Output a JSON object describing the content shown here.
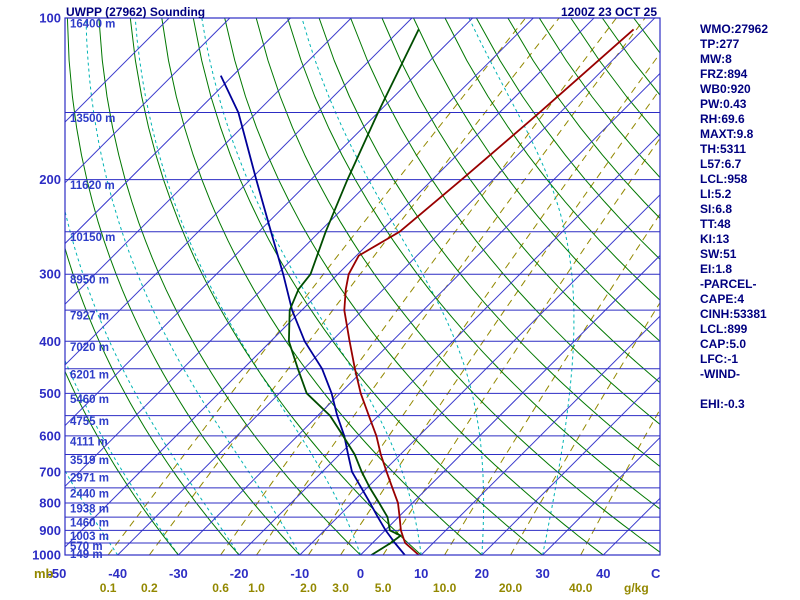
{
  "header": {
    "title": "UWPP (27962) Sounding",
    "datetime": "1200Z 23 OCT 25"
  },
  "panel": {
    "items": [
      "WMO:27962",
      "TP:277",
      "MW:8",
      "FRZ:894",
      "WB0:920",
      "PW:0.43",
      "RH:69.6",
      "MAXT:9.8",
      "TH:5311",
      "L57:6.7",
      "LCL:958",
      "LI:5.2",
      "SI:6.8",
      "TT:48",
      "KI:13",
      "SW:51",
      "EI:1.8",
      "-PARCEL-",
      "CAPE:4",
      "CINH:53381",
      "LCL:899",
      "CAP:5.0",
      "LFC:-1",
      "-WIND-",
      "",
      "EHI:-0.3"
    ]
  },
  "chart_data": {
    "type": "skewt_log_p",
    "title": "UWPP (27962) Sounding",
    "units": {
      "pressure": "mb",
      "temp": "C",
      "mixing": "g/kg"
    },
    "pressure_axis_mb": [
      100,
      200,
      300,
      400,
      500,
      600,
      700,
      800,
      900,
      1000
    ],
    "pressure_lines_mb": [
      100,
      150,
      200,
      250,
      300,
      350,
      400,
      450,
      500,
      550,
      600,
      650,
      700,
      750,
      800,
      850,
      900,
      950,
      1000
    ],
    "temp_axis_C": [
      -50,
      -40,
      -30,
      -20,
      -10,
      0,
      10,
      20,
      30,
      40
    ],
    "height_labels": [
      {
        "p": 100,
        "label": "16400 m"
      },
      {
        "p": 150,
        "label": "13500 m"
      },
      {
        "p": 200,
        "label": "11620 m"
      },
      {
        "p": 250,
        "label": "10150 m"
      },
      {
        "p": 300,
        "label": "8950 m"
      },
      {
        "p": 350,
        "label": "7927 m"
      },
      {
        "p": 400,
        "label": "7020 m"
      },
      {
        "p": 450,
        "label": "6201 m"
      },
      {
        "p": 500,
        "label": "5460 m"
      },
      {
        "p": 550,
        "label": "4755 m"
      },
      {
        "p": 600,
        "label": "4111 m"
      },
      {
        "p": 650,
        "label": "3519 m"
      },
      {
        "p": 700,
        "label": "2971 m"
      },
      {
        "p": 750,
        "label": "2440 m"
      },
      {
        "p": 800,
        "label": "1938 m"
      },
      {
        "p": 850,
        "label": "1460 m"
      },
      {
        "p": 900,
        "label": "1003 m"
      },
      {
        "p": 950,
        "label": "570 m"
      },
      {
        "p": 1000,
        "label": "149 m"
      }
    ],
    "grid": {
      "isotherms_C": {
        "min": -120,
        "max": 40,
        "step": 10
      },
      "dry_adiabats_thetaC": {
        "min": -30,
        "max": 170,
        "step": 10
      },
      "moist_adiabats_startC": {
        "min": -60,
        "max": 30,
        "step": 10
      },
      "mixing_ratio_gkg": [
        0.1,
        0.2,
        0.6,
        1.0,
        2.0,
        3.0,
        5.0,
        10.0,
        20.0,
        40.0
      ]
    },
    "colors": {
      "frame": "#2d2dc4",
      "isotherm": "#3a3acc",
      "pressure_line": "#2d2dc4",
      "dry_adiabat": "#007700",
      "moist_adiabat": "#00b4b4",
      "mixing_ratio": "#938800",
      "temperature": "#990000",
      "dewpoint": "#004d00",
      "parcel": "#000099",
      "axis_text": "#2d2dc4",
      "height_text": "#2d3cc8",
      "title_text": "#000080"
    },
    "series": {
      "temperature": {
        "name": "temperature",
        "color": "#990000",
        "points": [
          [
            1000,
            9.6
          ],
          [
            950,
            5.4
          ],
          [
            925,
            4.0
          ],
          [
            900,
            2.6
          ],
          [
            850,
            0.2
          ],
          [
            800,
            -2.4
          ],
          [
            750,
            -5.8
          ],
          [
            700,
            -9.4
          ],
          [
            650,
            -13.2
          ],
          [
            600,
            -17.0
          ],
          [
            550,
            -21.6
          ],
          [
            500,
            -26.6
          ],
          [
            450,
            -31.6
          ],
          [
            400,
            -37.0
          ],
          [
            350,
            -43.0
          ],
          [
            320,
            -46.2
          ],
          [
            300,
            -48.2
          ],
          [
            277,
            -49.6
          ],
          [
            250,
            -46.8
          ],
          [
            200,
            -45.2
          ],
          [
            150,
            -43.4
          ],
          [
            105,
            -41.6
          ]
        ]
      },
      "dewpoint": {
        "name": "dewpoint",
        "color": "#004d00",
        "points": [
          [
            1000,
            1.8
          ],
          [
            950,
            3.0
          ],
          [
            920,
            3.4
          ],
          [
            900,
            0.8
          ],
          [
            850,
            -1.8
          ],
          [
            800,
            -5.5
          ],
          [
            750,
            -9.5
          ],
          [
            700,
            -13.5
          ],
          [
            650,
            -17.5
          ],
          [
            600,
            -22.5
          ],
          [
            550,
            -28.0
          ],
          [
            500,
            -35.5
          ],
          [
            450,
            -41.0
          ],
          [
            400,
            -47.0
          ],
          [
            350,
            -52.0
          ],
          [
            320,
            -54.0
          ],
          [
            300,
            -54.5
          ],
          [
            250,
            -59.0
          ],
          [
            200,
            -64.0
          ],
          [
            150,
            -70.0
          ],
          [
            105,
            -77.0
          ]
        ]
      },
      "parcel": {
        "name": "parcel",
        "color": "#000099",
        "points": [
          [
            1000,
            7.3
          ],
          [
            950,
            3.7
          ],
          [
            900,
            0.1
          ],
          [
            850,
            -3.4
          ],
          [
            800,
            -7.0
          ],
          [
            750,
            -10.9
          ],
          [
            700,
            -15.1
          ],
          [
            650,
            -18.6
          ],
          [
            600,
            -22.3
          ],
          [
            550,
            -26.8
          ],
          [
            500,
            -31.4
          ],
          [
            450,
            -37.0
          ],
          [
            400,
            -44.4
          ],
          [
            350,
            -51.6
          ],
          [
            300,
            -59.0
          ],
          [
            250,
            -68.0
          ],
          [
            200,
            -79.0
          ],
          [
            150,
            -93.0
          ],
          [
            128,
            -102.0
          ]
        ]
      }
    }
  }
}
